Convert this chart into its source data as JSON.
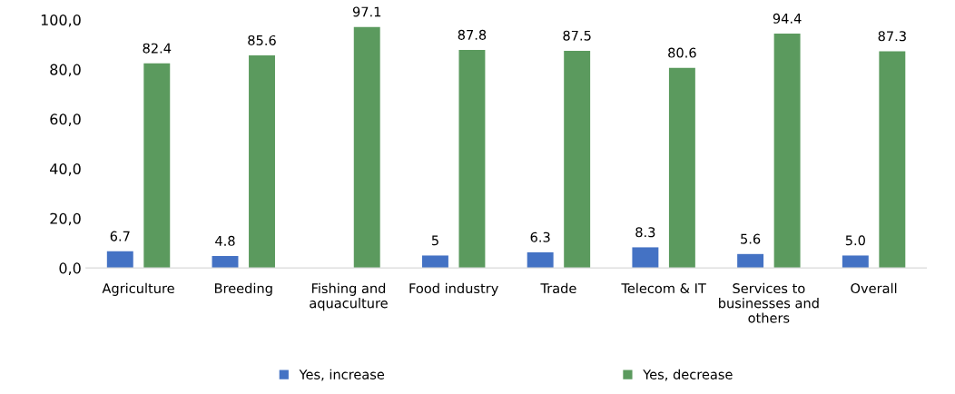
{
  "chart_data": {
    "type": "bar",
    "categories": [
      "Agriculture",
      "Breeding",
      "Fishing and\naquaculture",
      "Food industry",
      "Trade",
      "Telecom & IT",
      "Services to\nbusinesses and\nothers",
      "Overall"
    ],
    "series": [
      {
        "name": "Yes, increase",
        "color": "#4472c4",
        "values": [
          6.7,
          4.8,
          null,
          5,
          6.3,
          8.3,
          5.6,
          5.0
        ],
        "value_labels": [
          "6.7",
          "4.8",
          null,
          "5",
          "6.3",
          "8.3",
          "5.6",
          "5.0"
        ]
      },
      {
        "name": "Yes, decrease",
        "color": "#5b9a5e",
        "values": [
          82.4,
          85.6,
          97.1,
          87.8,
          87.5,
          80.6,
          94.4,
          87.3
        ],
        "value_labels": [
          "82.4",
          "85.6",
          "97.1",
          "87.8",
          "87.5",
          "80.6",
          "94.4",
          "87.3"
        ]
      }
    ],
    "ylim": [
      0,
      100
    ],
    "yticks": [
      {
        "value": 0,
        "label": "0,0"
      },
      {
        "value": 20,
        "label": "20,0"
      },
      {
        "value": 40,
        "label": "40,0"
      },
      {
        "value": 60,
        "label": "60,0"
      },
      {
        "value": 80,
        "label": "80,0"
      },
      {
        "value": 100,
        "label": "100,0"
      }
    ],
    "grid": false,
    "legend": "bottom"
  }
}
